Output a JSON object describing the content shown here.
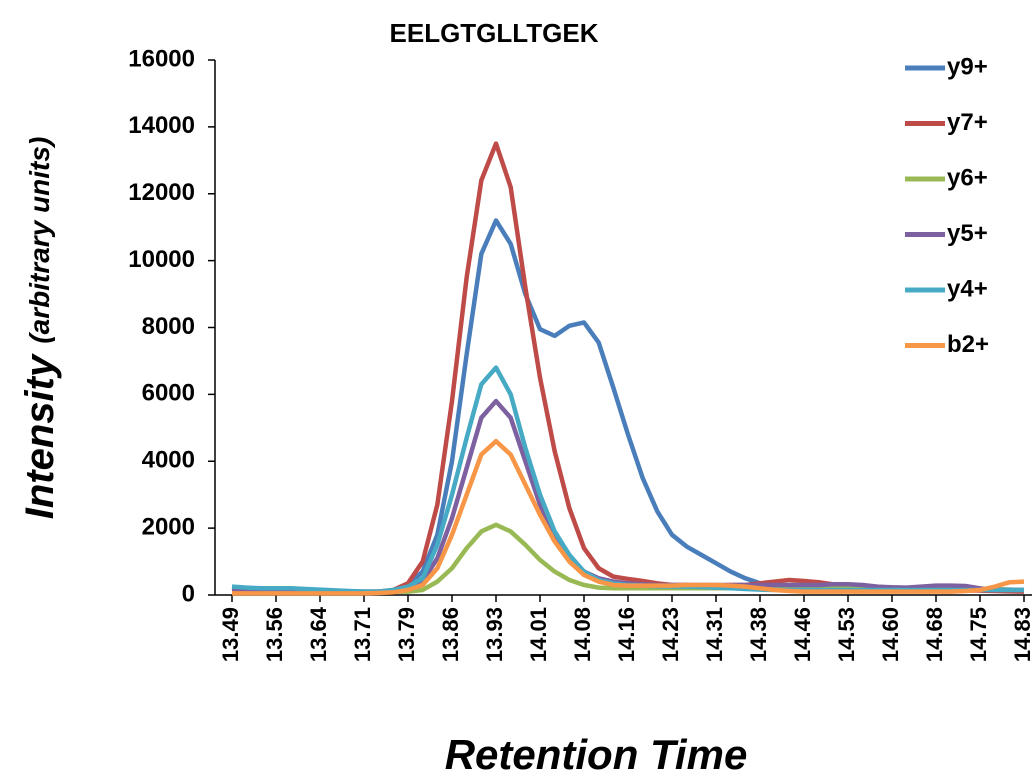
{
  "chart_data": {
    "type": "line",
    "title": "EELGTGLLTGEK",
    "ylabel": "Intensity",
    "ylabel_note": "(arbitrary units)",
    "xlabel": "Retention Time",
    "categories": [
      "13.49",
      null,
      null,
      "13.56",
      null,
      null,
      "13.64",
      null,
      null,
      "13.71",
      null,
      null,
      "13.79",
      null,
      null,
      "13.86",
      null,
      null,
      "13.93",
      null,
      null,
      "14.01",
      null,
      null,
      "14.08",
      null,
      null,
      "14.16",
      null,
      null,
      "14.23",
      null,
      null,
      "14.31",
      null,
      null,
      "14.38",
      null,
      null,
      "14.46",
      null,
      null,
      "14.53",
      null,
      null,
      "14.60",
      null,
      null,
      "14.68",
      null,
      null,
      "14.75",
      null,
      null,
      "14.83"
    ],
    "ylim": [
      0,
      16000
    ],
    "yticks": [
      0,
      2000,
      4000,
      6000,
      8000,
      10000,
      12000,
      14000,
      16000
    ],
    "grid": false,
    "legend": "right",
    "series": [
      {
        "name": "y9+",
        "color": "#4a7ebb",
        "values": [
          220,
          190,
          180,
          180,
          170,
          160,
          150,
          130,
          110,
          100,
          100,
          150,
          300,
          700,
          1800,
          4000,
          7200,
          10200,
          11200,
          10500,
          9000,
          7950,
          7750,
          8050,
          8150,
          7550,
          6200,
          4800,
          3500,
          2500,
          1800,
          1450,
          1200,
          950,
          700,
          500,
          350,
          300,
          280,
          260,
          250,
          250,
          240,
          230,
          220,
          210,
          200,
          200,
          200,
          190,
          180,
          180,
          170,
          160,
          150
        ]
      },
      {
        "name": "y7+",
        "color": "#be4b48",
        "values": [
          100,
          100,
          100,
          100,
          100,
          100,
          100,
          90,
          80,
          80,
          100,
          150,
          350,
          1000,
          2700,
          5800,
          9500,
          12400,
          13500,
          12200,
          9200,
          6500,
          4300,
          2600,
          1400,
          800,
          550,
          480,
          420,
          350,
          300,
          300,
          280,
          280,
          300,
          300,
          350,
          400,
          450,
          420,
          380,
          320,
          280,
          250,
          220,
          200,
          180,
          160,
          150,
          150,
          140,
          130,
          120,
          110,
          100
        ]
      },
      {
        "name": "y6+",
        "color": "#98b954",
        "values": [
          100,
          100,
          100,
          100,
          100,
          100,
          100,
          100,
          100,
          100,
          100,
          100,
          100,
          150,
          400,
          800,
          1400,
          1900,
          2100,
          1900,
          1500,
          1050,
          700,
          450,
          300,
          220,
          200,
          200,
          200,
          200,
          200,
          200,
          200,
          200,
          200,
          200,
          200,
          200,
          200,
          200,
          200,
          200,
          200,
          200,
          200,
          200,
          200,
          200,
          200,
          200,
          200,
          180,
          170,
          160,
          150
        ]
      },
      {
        "name": "y5+",
        "color": "#7d60a0",
        "values": [
          150,
          150,
          150,
          150,
          150,
          150,
          150,
          120,
          100,
          100,
          100,
          120,
          200,
          400,
          1100,
          2300,
          3800,
          5300,
          5800,
          5300,
          4000,
          2700,
          1700,
          1100,
          700,
          500,
          400,
          350,
          320,
          300,
          300,
          300,
          300,
          300,
          300,
          300,
          300,
          300,
          300,
          300,
          300,
          320,
          320,
          300,
          250,
          230,
          220,
          250,
          280,
          280,
          270,
          200,
          150,
          150,
          150
        ]
      },
      {
        "name": "y4+",
        "color": "#46aac5",
        "values": [
          250,
          220,
          200,
          200,
          200,
          180,
          160,
          140,
          120,
          100,
          100,
          150,
          250,
          500,
          1500,
          3000,
          4700,
          6300,
          6800,
          6000,
          4400,
          3000,
          1900,
          1200,
          700,
          450,
          350,
          300,
          280,
          260,
          250,
          250,
          240,
          220,
          200,
          180,
          160,
          150,
          150,
          150,
          150,
          150,
          150,
          150,
          150,
          150,
          150,
          150,
          150,
          150,
          150,
          150,
          150,
          150,
          150
        ]
      },
      {
        "name": "b2+",
        "color": "#f79646",
        "values": [
          50,
          50,
          50,
          50,
          50,
          50,
          50,
          50,
          50,
          50,
          60,
          80,
          150,
          300,
          800,
          1800,
          3000,
          4200,
          4600,
          4200,
          3300,
          2400,
          1600,
          1000,
          600,
          400,
          300,
          280,
          280,
          280,
          280,
          300,
          300,
          300,
          280,
          250,
          200,
          150,
          120,
          100,
          100,
          100,
          100,
          100,
          100,
          100,
          100,
          100,
          100,
          100,
          120,
          150,
          250,
          380,
          400
        ]
      }
    ]
  }
}
